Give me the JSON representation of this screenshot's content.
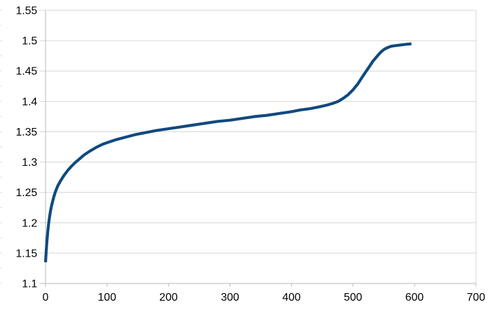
{
  "chart": {
    "background": "#ffffff",
    "y_tick_labels": [
      "1.55",
      "1.5",
      "1.45",
      "1.4",
      "1.35",
      "1.3",
      "1.25",
      "1.2",
      "1.15",
      "1.1"
    ],
    "x_tick_labels": [
      "0",
      "100",
      "200",
      "300",
      "400",
      "500",
      "600",
      "700"
    ]
  },
  "chart_data": {
    "type": "line",
    "title": "",
    "xlabel": "",
    "ylabel": "",
    "legend": "none",
    "xlim": [
      0,
      700
    ],
    "ylim": [
      1.1,
      1.55
    ],
    "x_tick_interval": 100,
    "y_tick_interval": 0.05,
    "y_minor_tick_interval": 0.025,
    "grid": "horizontal-only",
    "colors": {
      "series": "#0f4a80",
      "gridline": "#d6d6d6",
      "axis": "#b9b9b9",
      "minor_tick": "#d9d9d9",
      "text": "#000000"
    },
    "series": [
      {
        "name": "series-1",
        "color": "#0f4a80",
        "points": [
          [
            0,
            1.135
          ],
          [
            0.5,
            1.143
          ],
          [
            1,
            1.152
          ],
          [
            2,
            1.166
          ],
          [
            3,
            1.178
          ],
          [
            4,
            1.189
          ],
          [
            5,
            1.198
          ],
          [
            6,
            1.206
          ],
          [
            8,
            1.219
          ],
          [
            10,
            1.229
          ],
          [
            13,
            1.241
          ],
          [
            16,
            1.251
          ],
          [
            20,
            1.261
          ],
          [
            25,
            1.27
          ],
          [
            30,
            1.278
          ],
          [
            36,
            1.286
          ],
          [
            42,
            1.293
          ],
          [
            48,
            1.299
          ],
          [
            55,
            1.305
          ],
          [
            63,
            1.312
          ],
          [
            72,
            1.318
          ],
          [
            82,
            1.324
          ],
          [
            92,
            1.329
          ],
          [
            100,
            1.332
          ],
          [
            115,
            1.337
          ],
          [
            130,
            1.341
          ],
          [
            145,
            1.345
          ],
          [
            160,
            1.348
          ],
          [
            180,
            1.352
          ],
          [
            200,
            1.355
          ],
          [
            220,
            1.358
          ],
          [
            240,
            1.361
          ],
          [
            260,
            1.364
          ],
          [
            280,
            1.367
          ],
          [
            300,
            1.369
          ],
          [
            320,
            1.372
          ],
          [
            340,
            1.375
          ],
          [
            360,
            1.377
          ],
          [
            380,
            1.38
          ],
          [
            400,
            1.383
          ],
          [
            415,
            1.386
          ],
          [
            430,
            1.388
          ],
          [
            445,
            1.391
          ],
          [
            458,
            1.394
          ],
          [
            468,
            1.397
          ],
          [
            476,
            1.4
          ],
          [
            484,
            1.405
          ],
          [
            492,
            1.411
          ],
          [
            500,
            1.419
          ],
          [
            508,
            1.429
          ],
          [
            515,
            1.44
          ],
          [
            521,
            1.449
          ],
          [
            527,
            1.458
          ],
          [
            533,
            1.467
          ],
          [
            539,
            1.474
          ],
          [
            545,
            1.481
          ],
          [
            551,
            1.486
          ],
          [
            557,
            1.489
          ],
          [
            563,
            1.491
          ],
          [
            570,
            1.492
          ],
          [
            578,
            1.493
          ],
          [
            586,
            1.494
          ],
          [
            592,
            1.4945
          ],
          [
            595,
            1.495
          ]
        ]
      }
    ]
  }
}
